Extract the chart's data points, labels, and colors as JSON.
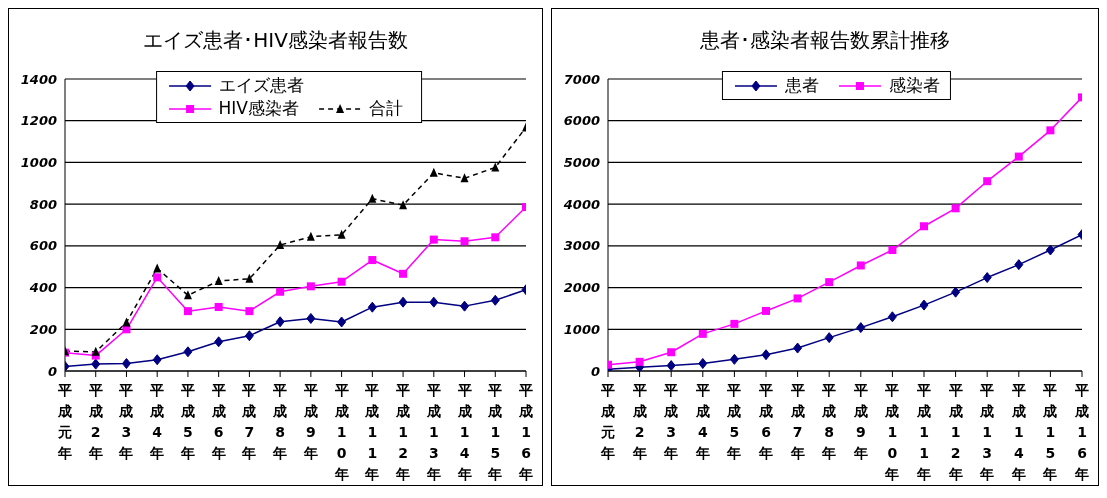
{
  "chart_data": [
    {
      "type": "line",
      "title": "エイズ患者･HIV感染者報告数",
      "categories": [
        "平成元年",
        "平成2年",
        "平成3年",
        "平成4年",
        "平成5年",
        "平成6年",
        "平成7年",
        "平成8年",
        "平成9年",
        "平成10年",
        "平成11年",
        "平成12年",
        "平成13年",
        "平成14年",
        "平成15年",
        "平成16年"
      ],
      "series": [
        {
          "name": "エイズ患者",
          "color": "#000080",
          "marker": "diamond",
          "line_style": "solid",
          "values": [
            22,
            33,
            36,
            54,
            92,
            140,
            169,
            236,
            252,
            235,
            306,
            330,
            330,
            311,
            339,
            390
          ]
        },
        {
          "name": "HIV感染者",
          "color": "#ff00ff",
          "marker": "square",
          "line_style": "solid",
          "values": [
            88,
            74,
            200,
            449,
            287,
            307,
            287,
            380,
            406,
            428,
            532,
            466,
            630,
            622,
            641,
            786
          ]
        },
        {
          "name": "合計",
          "color": "#000000",
          "marker": "triangle",
          "line_style": "dashed",
          "values": [
            95,
            92,
            233,
            492,
            363,
            432,
            442,
            604,
            644,
            653,
            826,
            795,
            950,
            924,
            976,
            1168
          ]
        }
      ],
      "ylim": [
        0,
        1400
      ],
      "yticks": [
        0,
        200,
        400,
        600,
        800,
        1000,
        1200,
        1400
      ],
      "grid": "y",
      "legend": "top"
    },
    {
      "type": "line",
      "title": "患者･感染者報告数累計推移",
      "categories": [
        "平成元年",
        "平成2年",
        "平成3年",
        "平成4年",
        "平成5年",
        "平成6年",
        "平成7年",
        "平成8年",
        "平成9年",
        "平成10年",
        "平成11年",
        "平成12年",
        "平成13年",
        "平成14年",
        "平成15年",
        "平成16年"
      ],
      "series": [
        {
          "name": "患者",
          "color": "#000080",
          "marker": "diamond",
          "line_style": "solid",
          "values": [
            40,
            90,
            130,
            180,
            280,
            390,
            550,
            800,
            1040,
            1300,
            1580,
            1890,
            2240,
            2550,
            2900,
            3270
          ]
        },
        {
          "name": "感染者",
          "color": "#ff00ff",
          "marker": "square",
          "line_style": "solid",
          "values": [
            150,
            220,
            450,
            890,
            1130,
            1440,
            1740,
            2130,
            2530,
            2900,
            3470,
            3900,
            4550,
            5140,
            5770,
            6560
          ]
        }
      ],
      "ylim": [
        0,
        7000
      ],
      "yticks": [
        0,
        1000,
        2000,
        3000,
        4000,
        5000,
        6000,
        7000
      ],
      "grid": "y",
      "legend": "top"
    }
  ]
}
